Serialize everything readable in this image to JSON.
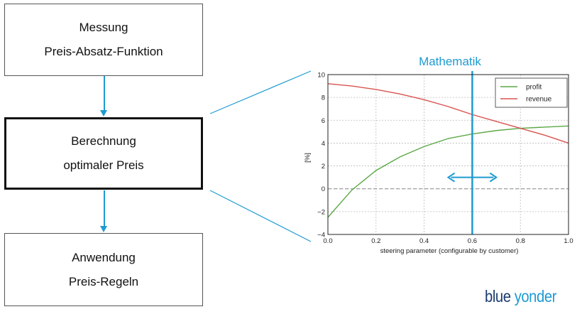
{
  "flow": {
    "boxes": [
      {
        "line1": "Messung",
        "line2": "Preis-Absatz-Funktion"
      },
      {
        "line1": "Berechnung",
        "line2": "optimaler Preis"
      },
      {
        "line1": "Anwendung",
        "line2": "Preis-Regeln"
      }
    ]
  },
  "colors": {
    "accent": "#1e9bd1",
    "profit": "#5aa845",
    "revenue": "#d9534f",
    "logo_dark": "#1b3c6f"
  },
  "logo": {
    "word1": "blue",
    "word2": "yonder"
  },
  "chart_data": {
    "type": "line",
    "title": "Mathematik",
    "xlabel": "steering parameter (configurable by customer)",
    "ylabel": "[%]",
    "xlim": [
      0.0,
      1.0
    ],
    "ylim": [
      -4,
      10
    ],
    "xticks": [
      "0.0",
      "0.2",
      "0.4",
      "0.6",
      "0.8",
      "1.0"
    ],
    "yticks": [
      "−4",
      "−2",
      "0",
      "2",
      "4",
      "6",
      "8",
      "10"
    ],
    "grid": true,
    "legend_position": "top-right",
    "x": [
      0.0,
      0.1,
      0.2,
      0.3,
      0.4,
      0.5,
      0.6,
      0.7,
      0.8,
      0.9,
      1.0
    ],
    "series": [
      {
        "name": "profit",
        "color": "#5aa845",
        "values": [
          -2.5,
          -0.1,
          1.6,
          2.8,
          3.7,
          4.4,
          4.8,
          5.1,
          5.3,
          5.4,
          5.5
        ]
      },
      {
        "name": "revenue",
        "color": "#d9534f",
        "values": [
          9.2,
          9.0,
          8.7,
          8.3,
          7.8,
          7.2,
          6.5,
          5.9,
          5.3,
          4.7,
          4.0
        ]
      }
    ],
    "vline_x": 0.6,
    "zero_line": 0,
    "double_arrow": {
      "x_from": 0.5,
      "x_to": 0.7,
      "y": 1.0
    }
  }
}
